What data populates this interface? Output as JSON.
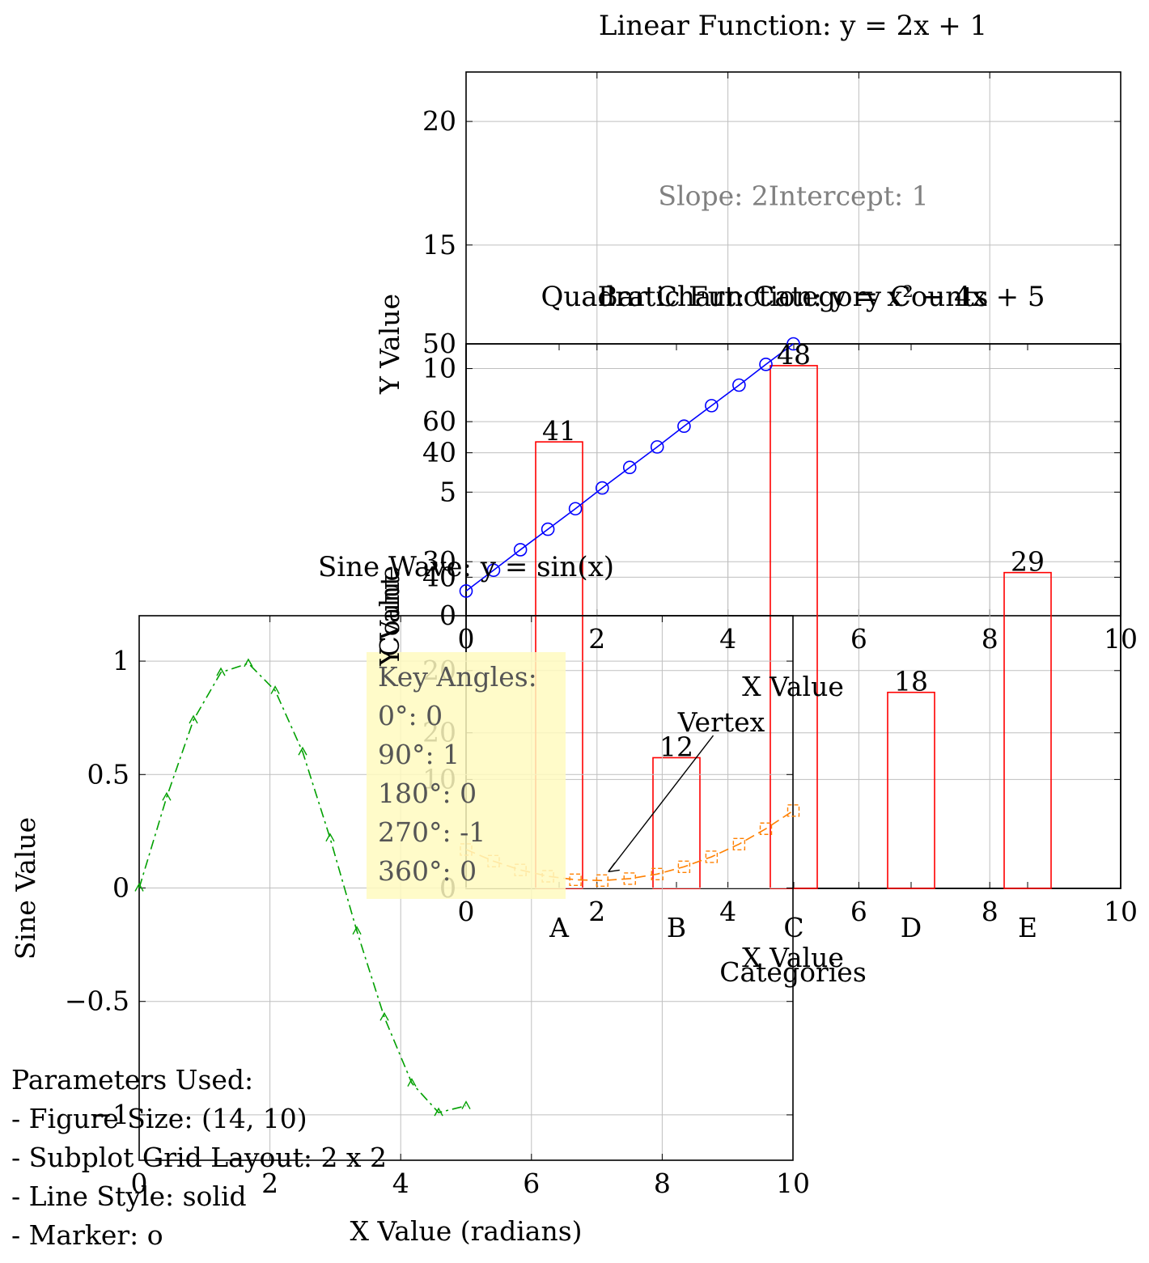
{
  "chart_data": [
    {
      "id": "linear",
      "type": "line",
      "title": "Linear Function: y = 2x + 1",
      "xlabel": "X Value",
      "ylabel": "Y Value",
      "xlim": [
        0,
        10
      ],
      "ylim": [
        0,
        22
      ],
      "xticks": [
        0,
        2,
        4,
        6,
        8,
        10
      ],
      "yticks": [
        0,
        5,
        10,
        15,
        20
      ],
      "grid": true,
      "color": "#0000ff",
      "marker": "circle",
      "series": [
        {
          "x": [
            0.0,
            0.42,
            0.83,
            1.25,
            1.67,
            2.08,
            2.5,
            2.92,
            3.33,
            3.75,
            4.17,
            4.58,
            5.0
          ],
          "y": [
            1.0,
            1.84,
            2.67,
            3.5,
            4.33,
            5.17,
            6.0,
            6.83,
            7.67,
            8.5,
            9.33,
            10.17,
            11.0
          ]
        }
      ],
      "annotation": {
        "text": "Slope: 2Intercept: 1",
        "color": "#808080",
        "x": 5,
        "y": 17
      }
    },
    {
      "id": "bar",
      "type": "bar",
      "title": "Bar Chart: Category Counts",
      "xlabel": "Categories",
      "ylabel": "Count",
      "ylim": [
        0,
        50
      ],
      "yticks": [
        0,
        10,
        20,
        30,
        40,
        50
      ],
      "grid": true,
      "color": "#ff0000",
      "categories": [
        "A",
        "B",
        "C",
        "D",
        "E"
      ],
      "values": [
        41,
        12,
        48,
        18,
        29
      ],
      "data_labels": [
        "41",
        "12",
        "48",
        "18",
        "29"
      ]
    },
    {
      "id": "quadratic",
      "type": "line",
      "title": "Quadratic Function: y = x² − 4x + 5",
      "xlabel": "X Value",
      "ylabel": "Y Value",
      "xlim": [
        0,
        10
      ],
      "ylim": [
        0,
        70
      ],
      "xticks": [
        0,
        2,
        4,
        6,
        8,
        10
      ],
      "yticks": [
        0,
        20,
        40,
        60
      ],
      "grid": true,
      "color": "#ff8000",
      "marker": "square",
      "series": [
        {
          "x": [
            0.0,
            0.42,
            0.83,
            1.25,
            1.67,
            2.08,
            2.5,
            2.92,
            3.33,
            3.75,
            4.17,
            4.58,
            5.0
          ],
          "y": [
            5.0,
            3.5,
            2.37,
            1.56,
            1.11,
            1.01,
            1.25,
            1.84,
            2.78,
            4.06,
            5.69,
            7.67,
            10.0
          ]
        }
      ],
      "annotation": {
        "text": "Vertex",
        "x": 2,
        "y": 1,
        "text_x": 3.9,
        "text_y": 21
      }
    },
    {
      "id": "sine",
      "type": "line",
      "title": "Sine Wave: y = sin(x)",
      "xlabel": "X Value (radians)",
      "ylabel": "Sine Value",
      "xlim": [
        0,
        10
      ],
      "ylim": [
        -1.2,
        1.2
      ],
      "xticks": [
        0,
        2,
        4,
        6,
        8,
        10
      ],
      "yticks": [
        -1,
        -0.5,
        0,
        0.5,
        1
      ],
      "ytick_labels": [
        "−1",
        "−0.5",
        "0",
        "0.5",
        "1"
      ],
      "grid": true,
      "color": "#00a000",
      "marker": "triangle",
      "series": [
        {
          "x": [
            0.0,
            0.42,
            0.83,
            1.25,
            1.67,
            2.08,
            2.5,
            2.92,
            3.33,
            3.75,
            4.17,
            4.58,
            5.0
          ],
          "y": [
            0.0,
            0.4,
            0.74,
            0.95,
            0.99,
            0.87,
            0.6,
            0.22,
            -0.19,
            -0.57,
            -0.86,
            -0.99,
            -0.96
          ]
        }
      ]
    }
  ],
  "key_angles": {
    "lines": [
      "Key Angles:",
      "0°: 0",
      "90°: 1",
      "180°: 0",
      "270°: -1",
      "360°: 0"
    ],
    "background": "#fffac0"
  },
  "parameters": {
    "lines": [
      "Parameters Used:",
      "- Figure Size: (14, 10)",
      "- Subplot Grid Layout: 2 x 2",
      "- Line Style: solid",
      "- Marker: o"
    ]
  }
}
